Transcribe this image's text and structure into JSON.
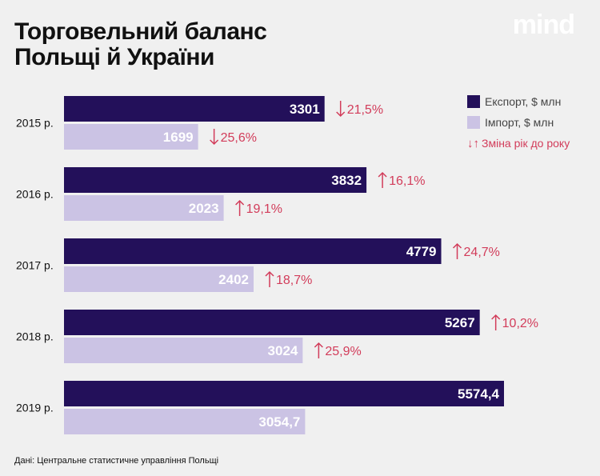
{
  "header": {
    "title_line1": "Торговельний баланс",
    "title_line2": "Польщі й України",
    "logo": "mind"
  },
  "legend": {
    "export_label": "Експорт, $ млн",
    "import_label": "Імпорт, $ млн",
    "change_label": "Зміна рік до року",
    "change_icon": "up-down-arrows-icon"
  },
  "source": "Дані: Центральне статистичне управління Польщі",
  "colors": {
    "export": "#23105a",
    "import": "#cbc3e4",
    "change": "#d23c5a",
    "background": "#f0f0f0"
  },
  "chart_data": {
    "type": "bar",
    "orientation": "horizontal",
    "categories": [
      "2015 р.",
      "2016 р.",
      "2017 р.",
      "2018 р.",
      "2019 р."
    ],
    "series": [
      {
        "name": "Експорт, $ млн",
        "values": [
          3301,
          3832,
          4779,
          5267,
          5574.4
        ],
        "labels": [
          "3301",
          "3832",
          "4779",
          "5267",
          "5574,4"
        ],
        "changes": [
          {
            "direction": "down",
            "text": "21,5%"
          },
          {
            "direction": "up",
            "text": "16,1%"
          },
          {
            "direction": "up",
            "text": "24,7%"
          },
          {
            "direction": "up",
            "text": "10,2%"
          },
          null
        ]
      },
      {
        "name": "Імпорт, $ млн",
        "values": [
          1699,
          2023,
          2402,
          3024,
          3054.7
        ],
        "labels": [
          "1699",
          "2023",
          "2402",
          "3024",
          "3054,7"
        ],
        "changes": [
          {
            "direction": "down",
            "text": "25,6%"
          },
          {
            "direction": "up",
            "text": "19,1%"
          },
          {
            "direction": "up",
            "text": "18,7%"
          },
          {
            "direction": "up",
            "text": "25,9%"
          },
          null
        ]
      }
    ],
    "xlim": [
      0,
      6000
    ],
    "grid": false,
    "legend_position": "top-right"
  }
}
